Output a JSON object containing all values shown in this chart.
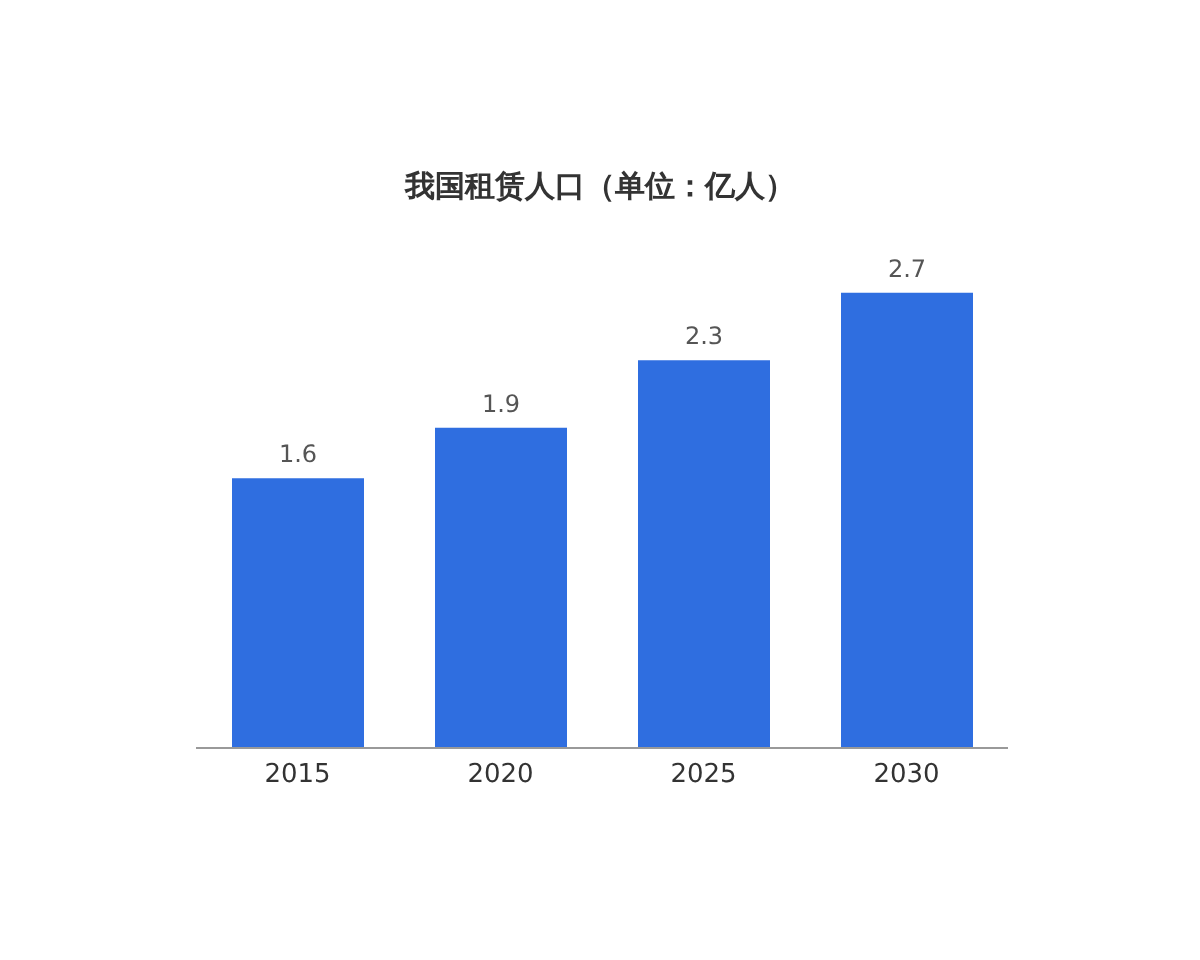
{
  "chart_data": {
    "type": "bar",
    "title": "我国租赁人口（单位：亿人）",
    "categories": [
      "2015",
      "2020",
      "2025",
      "2030"
    ],
    "values": [
      1.6,
      1.9,
      2.3,
      2.7
    ],
    "color": "#2f6ee0",
    "data_labels": true
  }
}
